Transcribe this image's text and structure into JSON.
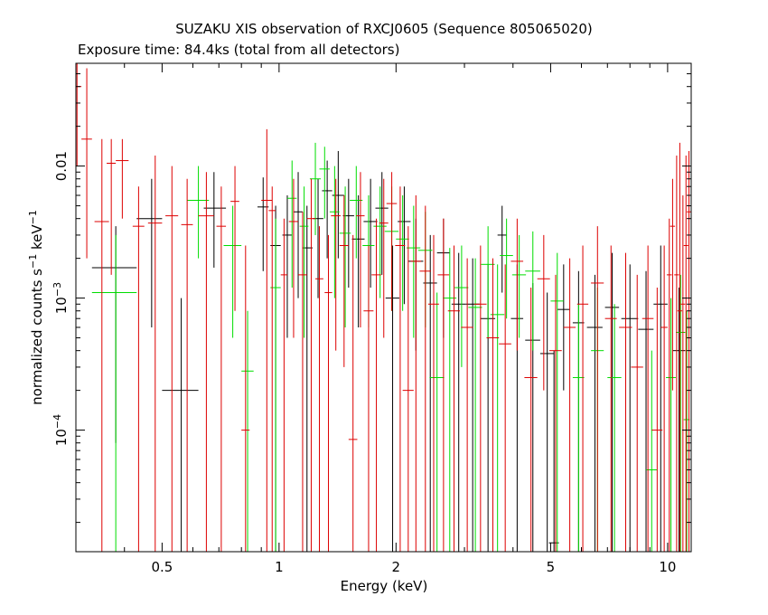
{
  "chart_data": {
    "type": "scatter",
    "title": "SUZAKU XIS observation of RXCJ0605 (Sequence 805065020)",
    "subtitle": "Exposure time: 84.4ks (total from all detectors)",
    "xlabel": "Energy (keV)",
    "ylabel": {
      "base": "normalized counts s",
      "exp1": "−1",
      "mid": " keV",
      "exp2": "−1"
    },
    "x_scale": "log",
    "y_scale": "log",
    "xlim": [
      0.3,
      11.5
    ],
    "ylim": [
      1.2e-05,
      0.06
    ],
    "x_ticks": [
      {
        "value": 0.5,
        "label": "0.5"
      },
      {
        "value": 1,
        "label": "1"
      },
      {
        "value": 2,
        "label": "2"
      },
      {
        "value": 5,
        "label": "5"
      },
      {
        "value": 10,
        "label": "10"
      }
    ],
    "y_ticks": [
      {
        "value": 0.01,
        "label": "0.01",
        "exp": ""
      },
      {
        "value": 0.001,
        "label": "10",
        "exp": "−3"
      },
      {
        "value": 0.0001,
        "label": "10",
        "exp": "−4"
      }
    ],
    "series": [
      {
        "color": "#000000",
        "points": [
          [
            0.38,
            0.0017,
            0.33,
            0.43,
            8e-05,
            0.0035
          ],
          [
            0.47,
            0.004,
            0.43,
            0.5,
            0.0006,
            0.008
          ],
          [
            0.56,
            0.0002,
            0.5,
            0.62,
            1.2e-05,
            0.001
          ],
          [
            0.68,
            0.0048,
            0.64,
            0.73,
            0.0017,
            0.009
          ],
          [
            0.91,
            0.0049,
            0.88,
            0.94,
            0.0016,
            0.0082
          ],
          [
            0.98,
            0.0025,
            0.95,
            1.01,
            1.2e-05,
            0.005
          ],
          [
            1.05,
            0.003,
            1.02,
            1.08,
            0.0005,
            0.006
          ],
          [
            1.12,
            0.0045,
            1.09,
            1.15,
            0.001,
            0.009
          ],
          [
            1.18,
            0.0024,
            1.15,
            1.22,
            1.2e-05,
            0.005
          ],
          [
            1.26,
            0.004,
            1.22,
            1.3,
            0.001,
            0.008
          ],
          [
            1.33,
            0.0065,
            1.29,
            1.37,
            0.002,
            0.011
          ],
          [
            1.42,
            0.006,
            1.37,
            1.47,
            0.002,
            0.013
          ],
          [
            1.51,
            0.0042,
            1.46,
            1.56,
            0.0012,
            0.008
          ],
          [
            1.6,
            0.0028,
            1.54,
            1.66,
            0.0006,
            0.006
          ],
          [
            1.72,
            0.0038,
            1.65,
            1.79,
            0.0012,
            0.008
          ],
          [
            1.84,
            0.0048,
            1.77,
            1.91,
            0.0015,
            0.009
          ],
          [
            1.96,
            0.001,
            1.88,
            2.04,
            1.2e-05,
            0.0025
          ],
          [
            2.1,
            0.0038,
            2.02,
            2.18,
            0.0009,
            0.007
          ],
          [
            2.25,
            0.0019,
            2.15,
            2.35,
            0.0004,
            0.004
          ],
          [
            2.45,
            0.0013,
            2.35,
            2.55,
            1.2e-05,
            0.003
          ],
          [
            2.65,
            0.0022,
            2.55,
            2.75,
            0.0005,
            0.004
          ],
          [
            2.9,
            0.0009,
            2.78,
            3.02,
            1.2e-05,
            0.0022
          ],
          [
            3.15,
            0.0009,
            3.02,
            3.28,
            1.2e-05,
            0.002
          ],
          [
            3.45,
            0.0007,
            3.3,
            3.6,
            1.2e-05,
            0.0018
          ],
          [
            3.75,
            0.003,
            3.65,
            3.85,
            0.0011,
            0.005
          ],
          [
            4.1,
            0.0007,
            3.95,
            4.25,
            1.2e-05,
            0.0018
          ],
          [
            4.5,
            0.00048,
            4.3,
            4.7,
            1.2e-05,
            0.0013
          ],
          [
            4.9,
            0.00038,
            4.7,
            5.1,
            1.2e-05,
            0.0011
          ],
          [
            5.4,
            0.00082,
            5.2,
            5.6,
            0.0002,
            0.0018
          ],
          [
            5.9,
            0.00065,
            5.7,
            6.1,
            1.2e-05,
            0.0016
          ],
          [
            6.5,
            0.0006,
            6.2,
            6.8,
            1.2e-05,
            0.0015
          ],
          [
            7.2,
            0.00085,
            6.9,
            7.5,
            1.2e-05,
            0.0022
          ],
          [
            8,
            0.0007,
            7.6,
            8.4,
            1.2e-05,
            0.0018
          ],
          [
            8.8,
            0.00058,
            8.4,
            9.2,
            1.2e-05,
            0.0016
          ],
          [
            9.6,
            0.0009,
            9.2,
            10,
            1.2e-05,
            0.0025
          ],
          [
            10.7,
            0.0004,
            10.3,
            11.1,
            1.2e-05,
            0.0012
          ],
          [
            5.1,
            1.4e-05,
            4.95,
            5.25,
            1.2e-05,
            0.0004
          ]
        ]
      },
      {
        "color": "#00dd00",
        "points": [
          [
            0.38,
            0.0011,
            0.33,
            0.43,
            1.2e-05,
            0.003
          ],
          [
            0.62,
            0.0055,
            0.58,
            0.66,
            0.002,
            0.01
          ],
          [
            0.76,
            0.0025,
            0.72,
            0.8,
            0.0005,
            0.005
          ],
          [
            0.83,
            0.00028,
            0.8,
            0.86,
            1.2e-05,
            0.0008
          ],
          [
            0.98,
            0.0012,
            0.95,
            1.01,
            1.2e-05,
            0.004
          ],
          [
            1.08,
            0.0057,
            1.05,
            1.11,
            0.0012,
            0.011
          ],
          [
            1.16,
            0.0035,
            1.13,
            1.19,
            0.0005,
            0.007
          ],
          [
            1.24,
            0.008,
            1.2,
            1.28,
            0.003,
            0.015
          ],
          [
            1.31,
            0.0095,
            1.27,
            1.35,
            0.004,
            0.014
          ],
          [
            1.39,
            0.0045,
            1.35,
            1.43,
            0.001,
            0.01
          ],
          [
            1.48,
            0.0031,
            1.43,
            1.53,
            0.0006,
            0.007
          ],
          [
            1.58,
            0.0055,
            1.52,
            1.64,
            0.002,
            0.01
          ],
          [
            1.7,
            0.0025,
            1.64,
            1.76,
            0.0006,
            0.006
          ],
          [
            1.82,
            0.0035,
            1.75,
            1.89,
            0.001,
            0.007
          ],
          [
            1.95,
            0.0032,
            1.87,
            2.03,
            0.0008,
            0.007
          ],
          [
            2.08,
            0.0028,
            2,
            2.16,
            0.0008,
            0.006
          ],
          [
            2.22,
            0.0024,
            2.13,
            2.31,
            0.0005,
            0.005
          ],
          [
            2.38,
            0.0023,
            2.28,
            2.48,
            0.0006,
            0.0045
          ],
          [
            2.55,
            0.00025,
            2.44,
            2.66,
            1.2e-05,
            0.0011
          ],
          [
            2.75,
            0.001,
            2.64,
            2.86,
            1.2e-05,
            0.0024
          ],
          [
            2.95,
            0.0012,
            2.83,
            3.07,
            0.0003,
            0.0025
          ],
          [
            3.2,
            0.00085,
            3.07,
            3.33,
            1.2e-05,
            0.002
          ],
          [
            3.45,
            0.0018,
            3.31,
            3.59,
            0.0005,
            0.0035
          ],
          [
            3.65,
            0.00075,
            3.5,
            3.8,
            1.2e-05,
            0.0018
          ],
          [
            3.85,
            0.0021,
            3.7,
            4,
            0.0007,
            0.004
          ],
          [
            4.15,
            0.0015,
            3.98,
            4.32,
            0.0005,
            0.003
          ],
          [
            4.5,
            0.0016,
            4.3,
            4.7,
            0.0004,
            0.0032
          ],
          [
            5.2,
            0.00095,
            5,
            5.4,
            1.2e-05,
            0.0022
          ],
          [
            5.9,
            0.00025,
            5.7,
            6.1,
            1.2e-05,
            0.0009
          ],
          [
            6.6,
            0.0004,
            6.35,
            6.85,
            1.2e-05,
            0.0012
          ],
          [
            7.3,
            0.00025,
            7,
            7.6,
            1.2e-05,
            0.0009
          ],
          [
            9.1,
            5e-05,
            8.8,
            9.4,
            1.2e-05,
            0.0004
          ],
          [
            10.2,
            0.00025,
            9.9,
            10.5,
            1.2e-05,
            0.001
          ],
          [
            10.8,
            0.00055,
            10.5,
            11.1,
            1.2e-05,
            0.0015
          ],
          [
            11.2,
            0.00012,
            11,
            11.4,
            1.2e-05,
            0.0008
          ]
        ]
      },
      {
        "color": "#dd0000",
        "points": [
          [
            0.302,
            0.04,
            0.3,
            0.31,
            0.01,
            0.06
          ],
          [
            0.32,
            0.016,
            0.31,
            0.33,
            0.002,
            0.055
          ],
          [
            0.35,
            0.0038,
            0.335,
            0.365,
            1.2e-05,
            0.016
          ],
          [
            0.37,
            0.0105,
            0.36,
            0.38,
            0.0015,
            0.016
          ],
          [
            0.395,
            0.011,
            0.38,
            0.41,
            0.004,
            0.016
          ],
          [
            0.435,
            0.0035,
            0.42,
            0.45,
            1.2e-05,
            0.007
          ],
          [
            0.48,
            0.0037,
            0.46,
            0.5,
            1.2e-05,
            0.012
          ],
          [
            0.53,
            0.0042,
            0.51,
            0.55,
            1.2e-05,
            0.01
          ],
          [
            0.58,
            0.0036,
            0.56,
            0.6,
            1.2e-05,
            0.008
          ],
          [
            0.65,
            0.0042,
            0.62,
            0.68,
            1.2e-05,
            0.009
          ],
          [
            0.71,
            0.0035,
            0.69,
            0.73,
            1.2e-05,
            0.007
          ],
          [
            0.77,
            0.0054,
            0.75,
            0.79,
            0.0008,
            0.01
          ],
          [
            0.82,
            0.0001,
            0.8,
            0.84,
            1.2e-05,
            0.0025
          ],
          [
            0.93,
            0.0055,
            0.9,
            0.96,
            1.2e-05,
            0.019
          ],
          [
            0.96,
            0.0046,
            0.94,
            0.98,
            1.2e-05,
            0.007
          ],
          [
            1.03,
            0.0015,
            1.01,
            1.05,
            1.2e-05,
            0.004
          ],
          [
            1.09,
            0.0038,
            1.06,
            1.12,
            0.0005,
            0.008
          ],
          [
            1.15,
            0.0015,
            1.12,
            1.18,
            1.2e-05,
            0.0045
          ],
          [
            1.21,
            0.004,
            1.18,
            1.24,
            1.2e-05,
            0.008
          ],
          [
            1.27,
            0.0014,
            1.24,
            1.3,
            1.2e-05,
            0.0035
          ],
          [
            1.34,
            0.0011,
            1.31,
            1.37,
            1.2e-05,
            0.003
          ],
          [
            1.4,
            0.0042,
            1.36,
            1.44,
            0.0004,
            0.008
          ],
          [
            1.47,
            0.0025,
            1.43,
            1.51,
            0.0003,
            0.006
          ],
          [
            1.55,
            8.5e-05,
            1.51,
            1.59,
            1.2e-05,
            0.003
          ],
          [
            1.62,
            0.0042,
            1.58,
            1.66,
            0.0006,
            0.009
          ],
          [
            1.7,
            0.0008,
            1.65,
            1.75,
            1.2e-05,
            0.0025
          ],
          [
            1.78,
            0.0015,
            1.73,
            1.83,
            1.2e-05,
            0.004
          ],
          [
            1.86,
            0.0037,
            1.81,
            1.91,
            0.0005,
            0.008
          ],
          [
            1.95,
            0.0052,
            1.89,
            2.01,
            0.0008,
            0.009
          ],
          [
            2.05,
            0.0025,
            1.99,
            2.11,
            1.2e-05,
            0.007
          ],
          [
            2.15,
            0.0002,
            2.08,
            2.22,
            1.2e-05,
            0.0035
          ],
          [
            2.25,
            0.0019,
            2.18,
            2.32,
            1.2e-05,
            0.006
          ],
          [
            2.38,
            0.0016,
            2.3,
            2.46,
            1.2e-05,
            0.005
          ],
          [
            2.5,
            0.0009,
            2.42,
            2.58,
            1.2e-05,
            0.003
          ],
          [
            2.65,
            0.0015,
            2.56,
            2.74,
            1.2e-05,
            0.004
          ],
          [
            2.82,
            0.0008,
            2.72,
            2.92,
            1.2e-05,
            0.0025
          ],
          [
            3.05,
            0.0006,
            2.94,
            3.16,
            1.2e-05,
            0.002
          ],
          [
            3.3,
            0.0009,
            3.18,
            3.42,
            1.2e-05,
            0.0025
          ],
          [
            3.55,
            0.0005,
            3.42,
            3.68,
            1.2e-05,
            0.002
          ],
          [
            3.82,
            0.00045,
            3.68,
            3.96,
            1.2e-05,
            0.0018
          ],
          [
            4.1,
            0.0019,
            3.95,
            4.25,
            0.0004,
            0.004
          ],
          [
            4.45,
            0.00025,
            4.28,
            4.62,
            1.2e-05,
            0.0012
          ],
          [
            4.8,
            0.0014,
            4.62,
            4.98,
            0.0002,
            0.003
          ],
          [
            5.15,
            0.0004,
            4.96,
            5.34,
            1.2e-05,
            0.0015
          ],
          [
            5.6,
            0.0006,
            5.4,
            5.8,
            1.2e-05,
            0.002
          ],
          [
            6.05,
            0.0009,
            5.85,
            6.25,
            1.2e-05,
            0.0025
          ],
          [
            6.6,
            0.0013,
            6.35,
            6.85,
            1.2e-05,
            0.0035
          ],
          [
            7.15,
            0.0007,
            6.9,
            7.4,
            1.2e-05,
            0.0025
          ],
          [
            7.8,
            0.0006,
            7.5,
            8.1,
            1.2e-05,
            0.0022
          ],
          [
            8.35,
            0.0003,
            8.05,
            8.65,
            1.2e-05,
            0.0015
          ],
          [
            8.9,
            0.0007,
            8.6,
            9.2,
            1.2e-05,
            0.0025
          ],
          [
            9.4,
            0.0001,
            9.1,
            9.7,
            1.2e-05,
            0.0012
          ],
          [
            9.8,
            0.0006,
            9.6,
            10,
            1.2e-05,
            0.0025
          ],
          [
            10.1,
            0.0015,
            9.95,
            10.25,
            1.2e-05,
            0.004
          ],
          [
            10.3,
            0.0035,
            10.15,
            10.45,
            0.0002,
            0.008
          ],
          [
            10.55,
            0.0015,
            10.4,
            10.7,
            1.2e-05,
            0.012
          ],
          [
            10.75,
            0.0008,
            10.6,
            10.9,
            1.2e-05,
            0.015
          ],
          [
            10.95,
            0.0009,
            10.8,
            11.1,
            1.2e-05,
            0.006
          ],
          [
            11.15,
            0.0025,
            11,
            11.3,
            1.2e-05,
            0.012
          ],
          [
            11.35,
            0.0045,
            11.2,
            11.5,
            1.2e-05,
            0.013
          ]
        ]
      }
    ]
  }
}
